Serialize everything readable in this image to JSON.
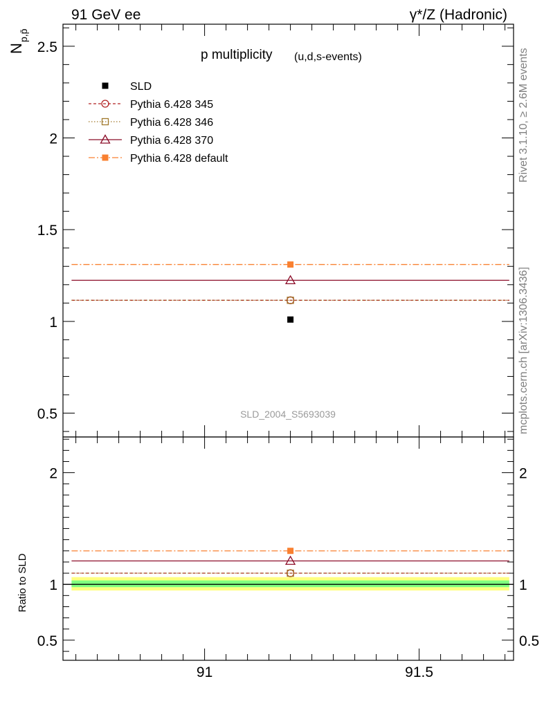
{
  "header": {
    "left": "91 GeV ee",
    "right": "γ*/Z (Hadronic)"
  },
  "side_text": {
    "rivet": "Rivet 3.1.10, ≥ 2.6M events",
    "mcplots": "mcplots.cern.ch [arXiv:1306.3436]"
  },
  "chart_data": [
    {
      "type": "line",
      "title": "p multiplicity",
      "subtitle": "(u,d,s-events)",
      "ylabel": "N",
      "ylabel_sub": "p,p̄",
      "watermark": "SLD_2004_S5693039",
      "xlim": [
        90.67,
        91.72
      ],
      "ylim": [
        0.37,
        2.62
      ],
      "y_ticks": [
        0.5,
        1,
        1.5,
        2,
        2.5
      ],
      "y_tick_labels": [
        "0.5",
        "1",
        "1.5",
        "2",
        "2.5"
      ],
      "x_ticks": [
        91,
        91.5
      ],
      "x_range": [
        90.69,
        91.71
      ],
      "legend_position": "top-left",
      "grid": false,
      "series": [
        {
          "name": "SLD",
          "kind": "data",
          "x": 91.2,
          "y": 1.01,
          "color": "#000000",
          "marker": "square-filled"
        },
        {
          "name": "Pythia 6.428 345",
          "x": 91.2,
          "y": 1.115,
          "color": "#b22222",
          "dash": "4,3",
          "marker": "circle-open"
        },
        {
          "name": "Pythia 6.428 346",
          "x": 91.2,
          "y": 1.115,
          "color": "#a0782b",
          "dash": "1.5,2.5",
          "marker": "square-open"
        },
        {
          "name": "Pythia 6.428 370",
          "x": 91.2,
          "y": 1.224,
          "color": "#8b0c28",
          "dash": "",
          "marker": "triangle-open"
        },
        {
          "name": "Pythia 6.428 default",
          "x": 91.2,
          "y": 1.31,
          "color": "#f98030",
          "dash": "9,3,2,3",
          "marker": "square-filled"
        }
      ]
    },
    {
      "type": "line",
      "ylabel": "Ratio to SLD",
      "xlim": [
        90.67,
        91.72
      ],
      "ylim": [
        0.32,
        2.32
      ],
      "y_ticks": [
        0.5,
        1,
        2
      ],
      "y_tick_labels": [
        "0.5",
        "1",
        "2"
      ],
      "x_ticks": [
        91,
        91.5
      ],
      "x_tick_labels": [
        "91",
        "91.5"
      ],
      "x_range": [
        90.69,
        91.71
      ],
      "grid": false,
      "reference": 1.0,
      "uncertainty_bands": [
        {
          "lo": 0.945,
          "hi": 1.065,
          "color": "#ffff80"
        },
        {
          "lo": 0.975,
          "hi": 1.035,
          "color": "#80ff80"
        }
      ],
      "series": [
        {
          "name": "Pythia 6.428 345",
          "x": 91.2,
          "y": 1.1,
          "color": "#b22222",
          "dash": "4,3",
          "marker": "circle-open"
        },
        {
          "name": "Pythia 6.428 346",
          "x": 91.2,
          "y": 1.1,
          "color": "#a0782b",
          "dash": "1.5,2.5",
          "marker": "square-open"
        },
        {
          "name": "Pythia 6.428 370",
          "x": 91.2,
          "y": 1.21,
          "color": "#8b0c28",
          "dash": "",
          "marker": "triangle-open"
        },
        {
          "name": "Pythia 6.428 default",
          "x": 91.2,
          "y": 1.3,
          "color": "#f98030",
          "dash": "9,3,2,3",
          "marker": "square-filled"
        }
      ]
    }
  ]
}
